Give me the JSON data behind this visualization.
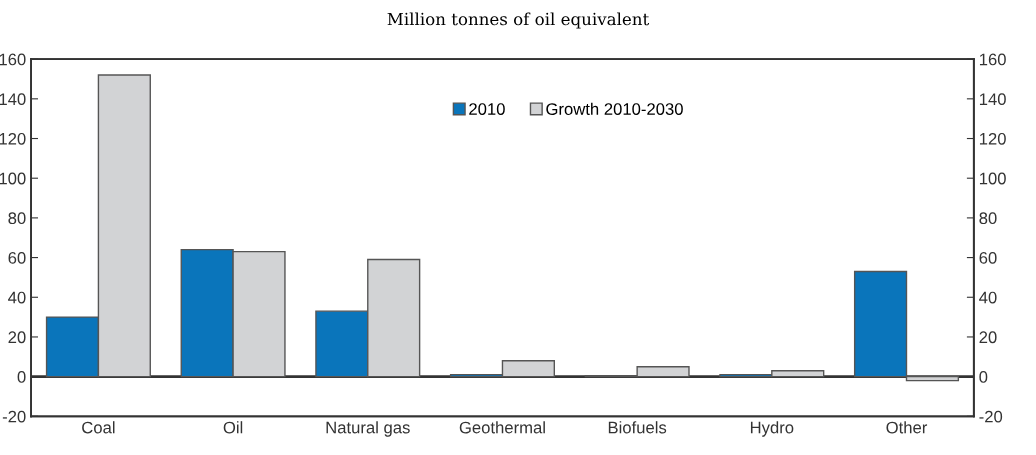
{
  "chart_data": {
    "type": "bar",
    "subtitle": "Million tonnes of oil equivalent",
    "categories": [
      "Coal",
      "Oil",
      "Natural gas",
      "Geothermal",
      "Biofuels",
      "Hydro",
      "Other"
    ],
    "series": [
      {
        "name": "2010",
        "color": "#0a75bb",
        "values": [
          30,
          64,
          33,
          1,
          0.5,
          1,
          53
        ]
      },
      {
        "name": "Growth 2010-2030",
        "color": "#d2d3d5",
        "values": [
          152,
          63,
          59,
          8,
          5,
          3,
          -2
        ]
      }
    ],
    "ylim": [
      -20,
      160
    ],
    "yticks": [
      -20,
      0,
      20,
      40,
      60,
      80,
      100,
      120,
      140,
      160
    ],
    "y2lim": [
      -20,
      160
    ],
    "y2ticks": [
      -20,
      0,
      20,
      40,
      60,
      80,
      100,
      120,
      140,
      160
    ],
    "ref_lines": [
      {
        "axis": "y",
        "value": 0,
        "color": "#333333",
        "line_style": "solid"
      }
    ],
    "legend": "top"
  }
}
